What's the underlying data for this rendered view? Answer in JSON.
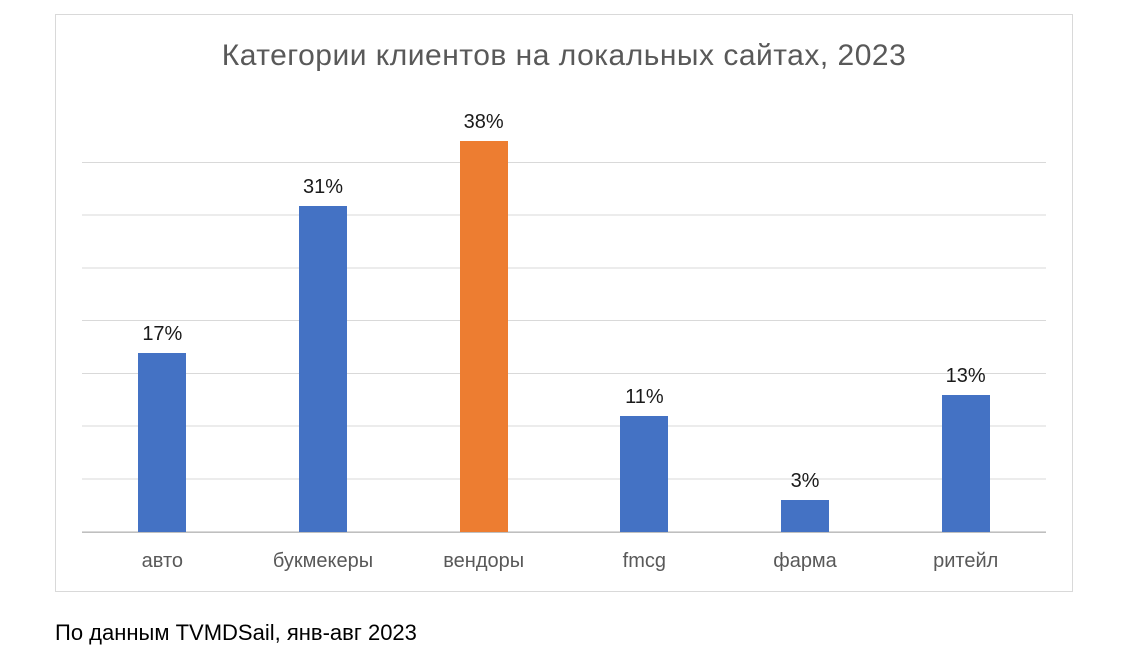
{
  "chart_data": {
    "type": "bar",
    "title": "Категории клиентов на локальных сайтах, 2023",
    "categories": [
      "авто",
      "букмекеры",
      "вендоры",
      "fmcg",
      "фарма",
      "ритейл"
    ],
    "values": [
      17,
      31,
      38,
      11,
      3,
      13
    ],
    "data_labels": [
      "17%",
      "31%",
      "38%",
      "11%",
      "3%",
      "13%"
    ],
    "xlabel": "",
    "ylabel": "",
    "ylim": [
      0,
      40
    ],
    "gridline_step": 5,
    "grid": true,
    "legend": "none",
    "bar_colors": [
      "#4472c4",
      "#4472c4",
      "#ed7d31",
      "#4472c4",
      "#4472c4",
      "#4472c4"
    ],
    "colors": {
      "primary_bar": "#4472c4",
      "highlight_bar": "#ed7d31",
      "title_text": "#595959",
      "axis_text": "#595959",
      "data_label_text": "#1a1a1a",
      "gridline": "#d9d9d9",
      "axis_line": "#bfbfbf",
      "frame_border": "#d9d9d9",
      "background": "#ffffff"
    }
  },
  "caption": "По данным TVMDSail, янв-авг 2023"
}
